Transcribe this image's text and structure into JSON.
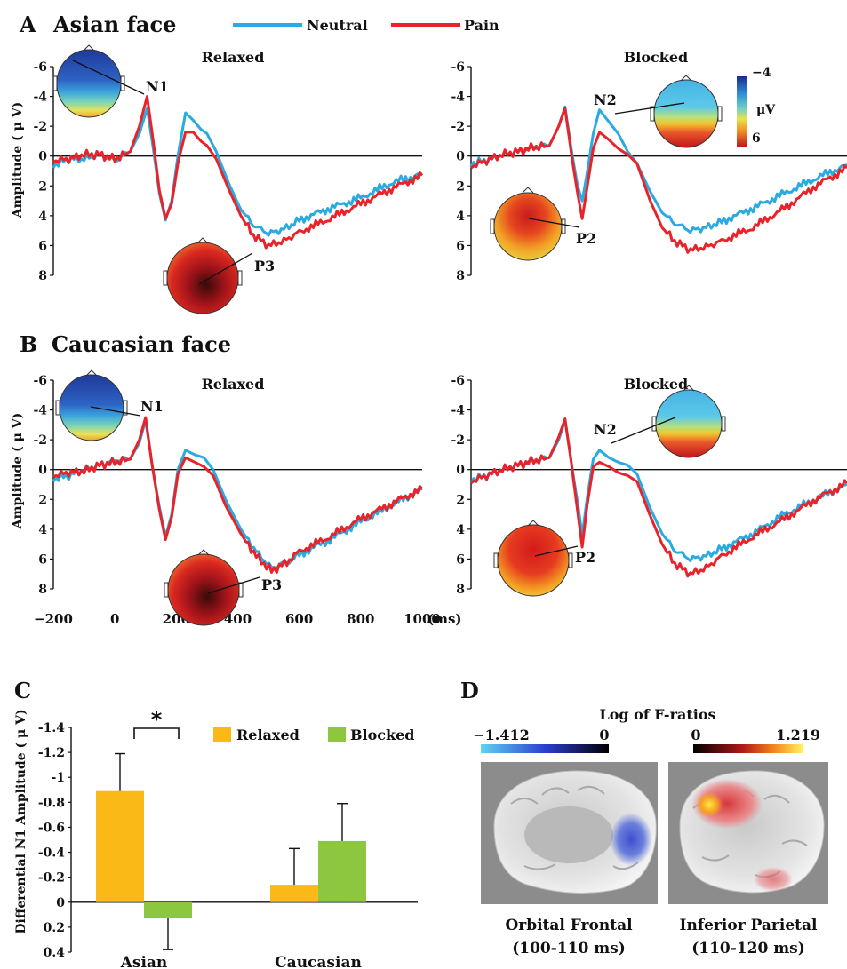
{
  "legend": {
    "items": [
      {
        "label": "Neutral",
        "color": "#29abe2"
      },
      {
        "label": "Pain",
        "color": "#e8232a"
      }
    ]
  },
  "panel_a": {
    "letter": "A",
    "title": "Asian face"
  },
  "panel_b": {
    "letter": "B",
    "title": "Caucasian face"
  },
  "panel_c": {
    "letter": "C"
  },
  "panel_d": {
    "letter": "D"
  },
  "erp": {
    "ylabel": "Amplitude ( μ V)",
    "yticks": [
      "-6",
      "-4",
      "-2",
      "0",
      "2",
      "4",
      "6",
      "8"
    ],
    "xticks": [
      "−200",
      "0",
      "200",
      "400",
      "600",
      "800",
      "1000"
    ],
    "xunit": "(ms)",
    "colorbar": {
      "top": "−4",
      "unit": "μV",
      "bottom": "6"
    },
    "subplots": [
      {
        "subtitle": "Relaxed",
        "labels": {
          "first": "N1",
          "late": "P3"
        }
      },
      {
        "subtitle": "Blocked",
        "labels": {
          "first": "N2",
          "late": "P2"
        }
      },
      {
        "subtitle": "Relaxed",
        "labels": {
          "first": "N1",
          "late": "P3"
        }
      },
      {
        "subtitle": "Blocked",
        "labels": {
          "first": "N2",
          "late": "P2"
        }
      }
    ]
  },
  "bar": {
    "ylabel": "Differential N1 Amplitude ( μ V)",
    "yticks": [
      "-1.4",
      "-1.2",
      "-1",
      "-0.8",
      "-0.6",
      "-0.4",
      "-0.2",
      "0",
      "0.2",
      "0.4"
    ],
    "legend": [
      {
        "label": "Relaxed",
        "color": "#fbb917"
      },
      {
        "label": "Blocked",
        "color": "#8dc63f"
      }
    ],
    "significance": "*"
  },
  "brain": {
    "title": "Log of F-ratios",
    "scale_neg": {
      "min": "−1.412",
      "max": "0"
    },
    "scale_pos": {
      "min": "0",
      "max": "1.219"
    },
    "captions": [
      {
        "name": "Orbital Frontal",
        "time": "(100-110 ms)"
      },
      {
        "name": "Inferior Parietal",
        "time": "(110-120 ms)"
      }
    ]
  },
  "chart_data": [
    {
      "type": "line",
      "title": "Asian face — Relaxed",
      "xlabel": "(ms)",
      "ylabel": "Amplitude ( μ V)",
      "xlim": [
        -200,
        1000
      ],
      "ylim": [
        8,
        -6
      ],
      "series": [
        {
          "name": "Neutral",
          "points": [
            [
              -200,
              0.6
            ],
            [
              -150,
              0.2
            ],
            [
              -100,
              0.2
            ],
            [
              -50,
              -0.1
            ],
            [
              0,
              0.3
            ],
            [
              50,
              -0.3
            ],
            [
              80,
              -1.5
            ],
            [
              105,
              -3.2
            ],
            [
              125,
              -0.5
            ],
            [
              145,
              2.5
            ],
            [
              165,
              4.3
            ],
            [
              185,
              3.0
            ],
            [
              205,
              0.0
            ],
            [
              230,
              -2.9
            ],
            [
              255,
              -2.4
            ],
            [
              280,
              -1.8
            ],
            [
              300,
              -1.5
            ],
            [
              330,
              -0.3
            ],
            [
              370,
              1.8
            ],
            [
              410,
              3.6
            ],
            [
              450,
              4.6
            ],
            [
              500,
              5.2
            ],
            [
              550,
              4.9
            ],
            [
              600,
              4.3
            ],
            [
              700,
              3.5
            ],
            [
              800,
              2.8
            ],
            [
              900,
              1.8
            ],
            [
              1000,
              1.2
            ]
          ]
        },
        {
          "name": "Pain",
          "points": [
            [
              -200,
              0.3
            ],
            [
              -150,
              0.2
            ],
            [
              -100,
              -0.1
            ],
            [
              -50,
              -0.1
            ],
            [
              0,
              0.2
            ],
            [
              50,
              -0.3
            ],
            [
              80,
              -2.0
            ],
            [
              105,
              -4.0
            ],
            [
              125,
              -1.0
            ],
            [
              145,
              2.3
            ],
            [
              165,
              4.2
            ],
            [
              185,
              3.2
            ],
            [
              205,
              0.5
            ],
            [
              230,
              -1.6
            ],
            [
              255,
              -1.6
            ],
            [
              280,
              -1.0
            ],
            [
              300,
              -0.7
            ],
            [
              330,
              0.2
            ],
            [
              370,
              2.2
            ],
            [
              410,
              4.0
            ],
            [
              450,
              5.3
            ],
            [
              500,
              6.0
            ],
            [
              550,
              5.7
            ],
            [
              600,
              5.1
            ],
            [
              700,
              4.2
            ],
            [
              800,
              3.2
            ],
            [
              900,
              2.2
            ],
            [
              1000,
              1.3
            ]
          ]
        }
      ]
    },
    {
      "type": "line",
      "title": "Asian face — Blocked",
      "xlabel": "(ms)",
      "ylabel": "Amplitude ( μ V)",
      "xlim": [
        -200,
        1000
      ],
      "ylim": [
        8,
        -6
      ],
      "series": [
        {
          "name": "Neutral",
          "points": [
            [
              -200,
              0.5
            ],
            [
              -150,
              0.3
            ],
            [
              -100,
              -0.1
            ],
            [
              -50,
              -0.3
            ],
            [
              0,
              -0.6
            ],
            [
              50,
              -0.7
            ],
            [
              80,
              -2.0
            ],
            [
              100,
              -3.3
            ],
            [
              120,
              -0.5
            ],
            [
              140,
              2.0
            ],
            [
              155,
              3.0
            ],
            [
              170,
              1.2
            ],
            [
              190,
              -1.5
            ],
            [
              210,
              -3.1
            ],
            [
              240,
              -2.3
            ],
            [
              270,
              -1.5
            ],
            [
              300,
              -0.3
            ],
            [
              330,
              0.5
            ],
            [
              370,
              2.3
            ],
            [
              410,
              3.8
            ],
            [
              450,
              4.5
            ],
            [
              500,
              5.0
            ],
            [
              550,
              4.8
            ],
            [
              600,
              4.4
            ],
            [
              700,
              3.5
            ],
            [
              800,
              2.5
            ],
            [
              900,
              1.5
            ],
            [
              1000,
              0.6
            ]
          ]
        },
        {
          "name": "Pain",
          "points": [
            [
              -200,
              0.7
            ],
            [
              -150,
              0.3
            ],
            [
              -100,
              -0.1
            ],
            [
              -50,
              -0.3
            ],
            [
              0,
              -0.6
            ],
            [
              50,
              -0.7
            ],
            [
              80,
              -2.0
            ],
            [
              100,
              -3.2
            ],
            [
              120,
              -0.2
            ],
            [
              140,
              2.5
            ],
            [
              155,
              4.2
            ],
            [
              170,
              2.2
            ],
            [
              190,
              -0.5
            ],
            [
              210,
              -1.6
            ],
            [
              240,
              -1.1
            ],
            [
              270,
              -0.5
            ],
            [
              300,
              -0.1
            ],
            [
              330,
              0.5
            ],
            [
              370,
              2.9
            ],
            [
              410,
              4.8
            ],
            [
              450,
              5.7
            ],
            [
              500,
              6.3
            ],
            [
              550,
              6.1
            ],
            [
              600,
              5.7
            ],
            [
              700,
              4.8
            ],
            [
              800,
              3.5
            ],
            [
              900,
              2.0
            ],
            [
              1000,
              0.8
            ]
          ]
        }
      ]
    },
    {
      "type": "line",
      "title": "Caucasian face — Relaxed",
      "xlabel": "(ms)",
      "ylabel": "Amplitude ( μ V)",
      "xlim": [
        -200,
        1000
      ],
      "ylim": [
        8,
        -6
      ],
      "series": [
        {
          "name": "Neutral",
          "points": [
            [
              -200,
              0.6
            ],
            [
              -150,
              0.4
            ],
            [
              -100,
              0.0
            ],
            [
              -50,
              -0.3
            ],
            [
              0,
              -0.6
            ],
            [
              50,
              -0.7
            ],
            [
              80,
              -1.8
            ],
            [
              100,
              -3.3
            ],
            [
              120,
              -0.5
            ],
            [
              145,
              2.5
            ],
            [
              165,
              4.5
            ],
            [
              185,
              3.0
            ],
            [
              205,
              0.0
            ],
            [
              230,
              -1.3
            ],
            [
              260,
              -1.0
            ],
            [
              290,
              -0.8
            ],
            [
              320,
              0.0
            ],
            [
              360,
              2.0
            ],
            [
              410,
              4.0
            ],
            [
              460,
              5.5
            ],
            [
              510,
              6.6
            ],
            [
              560,
              6.2
            ],
            [
              600,
              5.7
            ],
            [
              700,
              4.7
            ],
            [
              800,
              3.5
            ],
            [
              900,
              2.4
            ],
            [
              1000,
              1.3
            ]
          ]
        },
        {
          "name": "Pain",
          "points": [
            [
              -200,
              0.4
            ],
            [
              -150,
              0.2
            ],
            [
              -100,
              0.1
            ],
            [
              -50,
              -0.3
            ],
            [
              0,
              -0.5
            ],
            [
              50,
              -0.7
            ],
            [
              80,
              -2.0
            ],
            [
              100,
              -3.5
            ],
            [
              120,
              -0.5
            ],
            [
              145,
              2.7
            ],
            [
              165,
              4.7
            ],
            [
              185,
              3.2
            ],
            [
              205,
              0.3
            ],
            [
              230,
              -0.8
            ],
            [
              260,
              -0.5
            ],
            [
              290,
              -0.2
            ],
            [
              320,
              0.4
            ],
            [
              360,
              2.4
            ],
            [
              410,
              4.3
            ],
            [
              460,
              5.8
            ],
            [
              510,
              6.8
            ],
            [
              560,
              6.2
            ],
            [
              600,
              5.5
            ],
            [
              700,
              4.5
            ],
            [
              800,
              3.3
            ],
            [
              900,
              2.3
            ],
            [
              1000,
              1.3
            ]
          ]
        }
      ]
    },
    {
      "type": "line",
      "title": "Caucasian face — Blocked",
      "xlabel": "(ms)",
      "ylabel": "Amplitude ( μ V)",
      "xlim": [
        -200,
        1000
      ],
      "ylim": [
        8,
        -6
      ],
      "series": [
        {
          "name": "Neutral",
          "points": [
            [
              -200,
              0.7
            ],
            [
              -150,
              0.4
            ],
            [
              -100,
              0.0
            ],
            [
              -50,
              -0.3
            ],
            [
              0,
              -0.6
            ],
            [
              50,
              -0.8
            ],
            [
              80,
              -2.0
            ],
            [
              100,
              -3.3
            ],
            [
              120,
              -0.5
            ],
            [
              140,
              2.2
            ],
            [
              155,
              4.4
            ],
            [
              170,
              2.0
            ],
            [
              190,
              -0.7
            ],
            [
              210,
              -1.3
            ],
            [
              240,
              -0.8
            ],
            [
              270,
              -0.5
            ],
            [
              300,
              -0.3
            ],
            [
              330,
              0.3
            ],
            [
              370,
              2.5
            ],
            [
              410,
              4.3
            ],
            [
              450,
              5.4
            ],
            [
              500,
              6.0
            ],
            [
              550,
              5.8
            ],
            [
              600,
              5.3
            ],
            [
              700,
              4.3
            ],
            [
              800,
              3.0
            ],
            [
              900,
              2.0
            ],
            [
              1000,
              1.0
            ]
          ]
        },
        {
          "name": "Pain",
          "points": [
            [
              -200,
              0.8
            ],
            [
              -150,
              0.4
            ],
            [
              -100,
              0.0
            ],
            [
              -50,
              -0.3
            ],
            [
              0,
              -0.6
            ],
            [
              50,
              -0.8
            ],
            [
              80,
              -2.2
            ],
            [
              100,
              -3.4
            ],
            [
              120,
              -0.5
            ],
            [
              140,
              2.8
            ],
            [
              155,
              5.2
            ],
            [
              170,
              2.5
            ],
            [
              190,
              -0.2
            ],
            [
              210,
              -0.5
            ],
            [
              240,
              -0.2
            ],
            [
              270,
              0.2
            ],
            [
              300,
              0.4
            ],
            [
              330,
              0.8
            ],
            [
              370,
              3.0
            ],
            [
              410,
              5.0
            ],
            [
              450,
              6.3
            ],
            [
              500,
              7.0
            ],
            [
              550,
              6.6
            ],
            [
              600,
              5.8
            ],
            [
              700,
              4.5
            ],
            [
              800,
              3.3
            ],
            [
              900,
              2.0
            ],
            [
              1000,
              0.9
            ]
          ]
        }
      ]
    },
    {
      "type": "bar",
      "ylabel": "Differential N1 Amplitude ( μ V)",
      "ylim": [
        0.4,
        -1.4
      ],
      "categories": [
        "Asian",
        "Caucasian"
      ],
      "series": [
        {
          "name": "Relaxed",
          "values": [
            -0.89,
            -0.14
          ],
          "errors": [
            0.3,
            0.29
          ]
        },
        {
          "name": "Blocked",
          "values": [
            0.13,
            -0.49
          ],
          "errors": [
            0.25,
            0.3
          ]
        }
      ]
    }
  ]
}
